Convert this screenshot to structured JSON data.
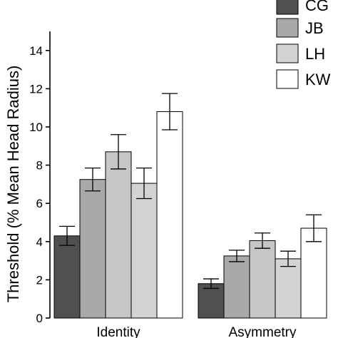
{
  "chart_data": {
    "type": "bar",
    "ylabel": "Threshold (% Mean Head Radius)",
    "ylim": [
      0,
      15
    ],
    "yticks": [
      0,
      2,
      4,
      6,
      8,
      10,
      12,
      14
    ],
    "categories": [
      "Identity",
      "Asymmetry"
    ],
    "series": [
      {
        "name": "CG",
        "color": "#505050",
        "values": [
          4.3,
          1.8
        ],
        "errors": [
          0.5,
          0.25
        ]
      },
      {
        "name": "JB",
        "color": "#a9a9a9",
        "values": [
          7.25,
          3.25
        ],
        "errors": [
          0.6,
          0.3
        ]
      },
      {
        "name": "LH",
        "color": "#d3d3d3",
        "values": [
          7.05,
          3.1
        ],
        "errors": [
          0.8,
          0.4
        ]
      },
      {
        "name": "KW",
        "color": "#ffffff",
        "values": [
          10.8,
          4.7
        ],
        "errors": [
          0.95,
          0.7
        ]
      }
    ],
    "extra_series_colors": [
      "#c6c6c6"
    ],
    "extra_values": [
      8.7,
      4.05
    ],
    "extra_errors": [
      0.9,
      0.4
    ],
    "grid": false,
    "legend_position": "top-right"
  }
}
